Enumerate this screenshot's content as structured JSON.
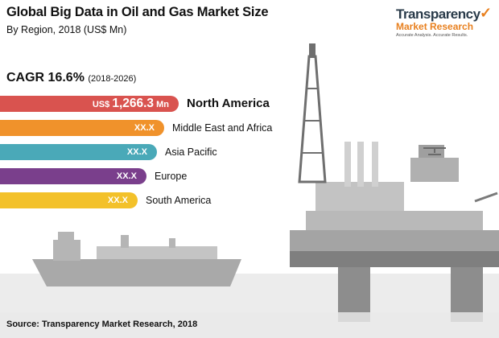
{
  "header": {
    "title": "Global Big Data in Oil and Gas Market Size",
    "subtitle": "By Region, 2018 (US$ Mn)"
  },
  "cagr": {
    "label": "CAGR 16.6%",
    "period": "(2018-2026)"
  },
  "logo": {
    "line1": "Transparency",
    "line2": "Market Research",
    "tagline": "Accurate Analysis. Accurate Results."
  },
  "footer": {
    "source": "Source: Transparency Market Research, 2018"
  },
  "colors": {
    "north_america": "#d9534f",
    "middle_east_africa": "#f0922b",
    "asia_pacific": "#4aa9b8",
    "europe": "#7a3f8c",
    "south_america": "#f3c12a",
    "scene_gray": "#9a9a9a"
  },
  "chart_data": {
    "type": "bar",
    "orientation": "horizontal",
    "title": "Global Big Data in Oil and Gas Market Size",
    "subtitle": "By Region, 2018 (US$ Mn)",
    "categories": [
      "North America",
      "Middle East and Africa",
      "Asia Pacific",
      "Europe",
      "South America"
    ],
    "values": [
      1266.3,
      null,
      null,
      null,
      null
    ],
    "display_values": [
      "1,266.3",
      "XX.X",
      "XX.X",
      "XX.X",
      "XX.X"
    ],
    "value_prefix": "US$",
    "value_suffix": "Mn",
    "relative_lengths": [
      1.0,
      0.92,
      0.88,
      0.82,
      0.77
    ],
    "legend": "none",
    "grid": false
  }
}
